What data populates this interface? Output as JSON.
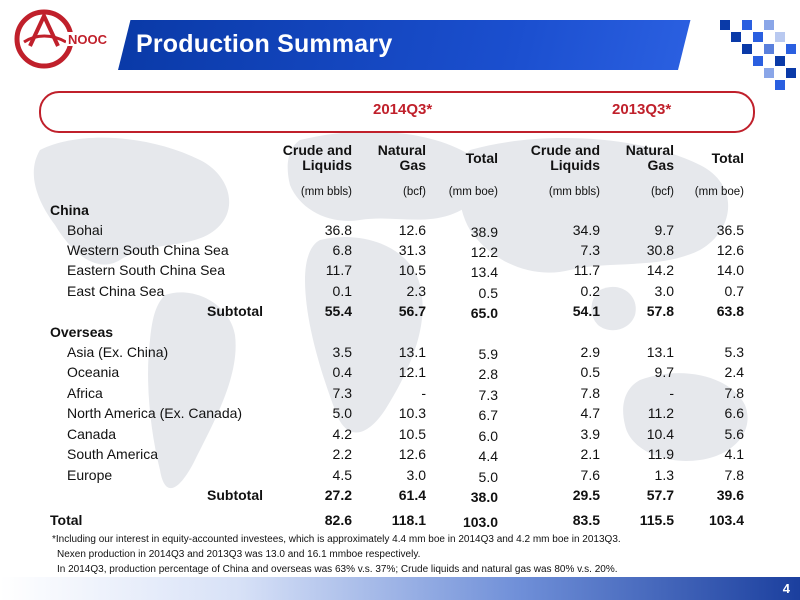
{
  "header": {
    "title": "Production Summary",
    "logo_text": "CNOOC"
  },
  "periods": [
    "2014Q3*",
    "2013Q3*"
  ],
  "columns": [
    {
      "line1": "Crude and",
      "line2": "Liquids",
      "unit": "(mm bbls)"
    },
    {
      "line1": "Natural",
      "line2": "Gas",
      "unit": "(bcf)"
    },
    {
      "line1": "Total",
      "line2": "",
      "unit": "(mm boe)"
    },
    {
      "line1": "Crude and",
      "line2": "Liquids",
      "unit": "(mm bbls)"
    },
    {
      "line1": "Natural",
      "line2": "Gas",
      "unit": "(bcf)"
    },
    {
      "line1": "Total",
      "line2": "",
      "unit": "(mm boe)"
    }
  ],
  "sections": {
    "china": {
      "label": "China",
      "rows": [
        {
          "name": "Bohai",
          "v": [
            "36.8",
            "12.6",
            "38.9",
            "34.9",
            "9.7",
            "36.5"
          ]
        },
        {
          "name": "Western South China Sea",
          "v": [
            "6.8",
            "31.3",
            "12.2",
            "7.3",
            "30.8",
            "12.6"
          ]
        },
        {
          "name": "Eastern South China Sea",
          "v": [
            "11.7",
            "10.5",
            "13.4",
            "11.7",
            "14.2",
            "14.0"
          ]
        },
        {
          "name": "East China Sea",
          "v": [
            "0.1",
            "2.3",
            "0.5",
            "0.2",
            "3.0",
            "0.7"
          ]
        }
      ],
      "subtotal": {
        "label": "Subtotal",
        "v": [
          "55.4",
          "56.7",
          "65.0",
          "54.1",
          "57.8",
          "63.8"
        ]
      }
    },
    "overseas": {
      "label": "Overseas",
      "rows": [
        {
          "name": "Asia (Ex. China)",
          "v": [
            "3.5",
            "13.1",
            "5.9",
            "2.9",
            "13.1",
            "5.3"
          ]
        },
        {
          "name": "Oceania",
          "v": [
            "0.4",
            "12.1",
            "2.8",
            "0.5",
            "9.7",
            "2.4"
          ]
        },
        {
          "name": "Africa",
          "v": [
            "7.3",
            "-",
            "7.3",
            "7.8",
            "-",
            "7.8"
          ]
        },
        {
          "name": "North America (Ex. Canada)",
          "v": [
            "5.0",
            "10.3",
            "6.7",
            "4.7",
            "11.2",
            "6.6"
          ]
        },
        {
          "name": "Canada",
          "v": [
            "4.2",
            "10.5",
            "6.0",
            "3.9",
            "10.4",
            "5.6"
          ]
        },
        {
          "name": "South America",
          "v": [
            "2.2",
            "12.6",
            "4.4",
            "2.1",
            "11.9",
            "4.1"
          ]
        },
        {
          "name": "Europe",
          "v": [
            "4.5",
            "3.0",
            "5.0",
            "7.6",
            "1.3",
            "7.8"
          ]
        }
      ],
      "subtotal": {
        "label": "Subtotal",
        "v": [
          "27.2",
          "61.4",
          "38.0",
          "29.5",
          "57.7",
          "39.6"
        ]
      }
    }
  },
  "total": {
    "label": "Total",
    "v": [
      "82.6",
      "118.1",
      "103.0",
      "83.5",
      "115.5",
      "103.4"
    ]
  },
  "footnotes": [
    "*Including our interest in equity-accounted investees, which is approximately 4.4 mm boe in 2014Q3 and 4.2 mm boe in 2013Q3.",
    "Nexen production in 2014Q3 and 2013Q3 was 13.0 and 16.1 mmboe respectively.",
    "In 2014Q3, production percentage of China and overseas was 63% v.s. 37%; Crude liquids and natural gas was 80% v.s. 20%."
  ],
  "page_number": "4",
  "colors": {
    "brand_blue": "#0a3aa8",
    "accent_red": "#c0202b"
  }
}
